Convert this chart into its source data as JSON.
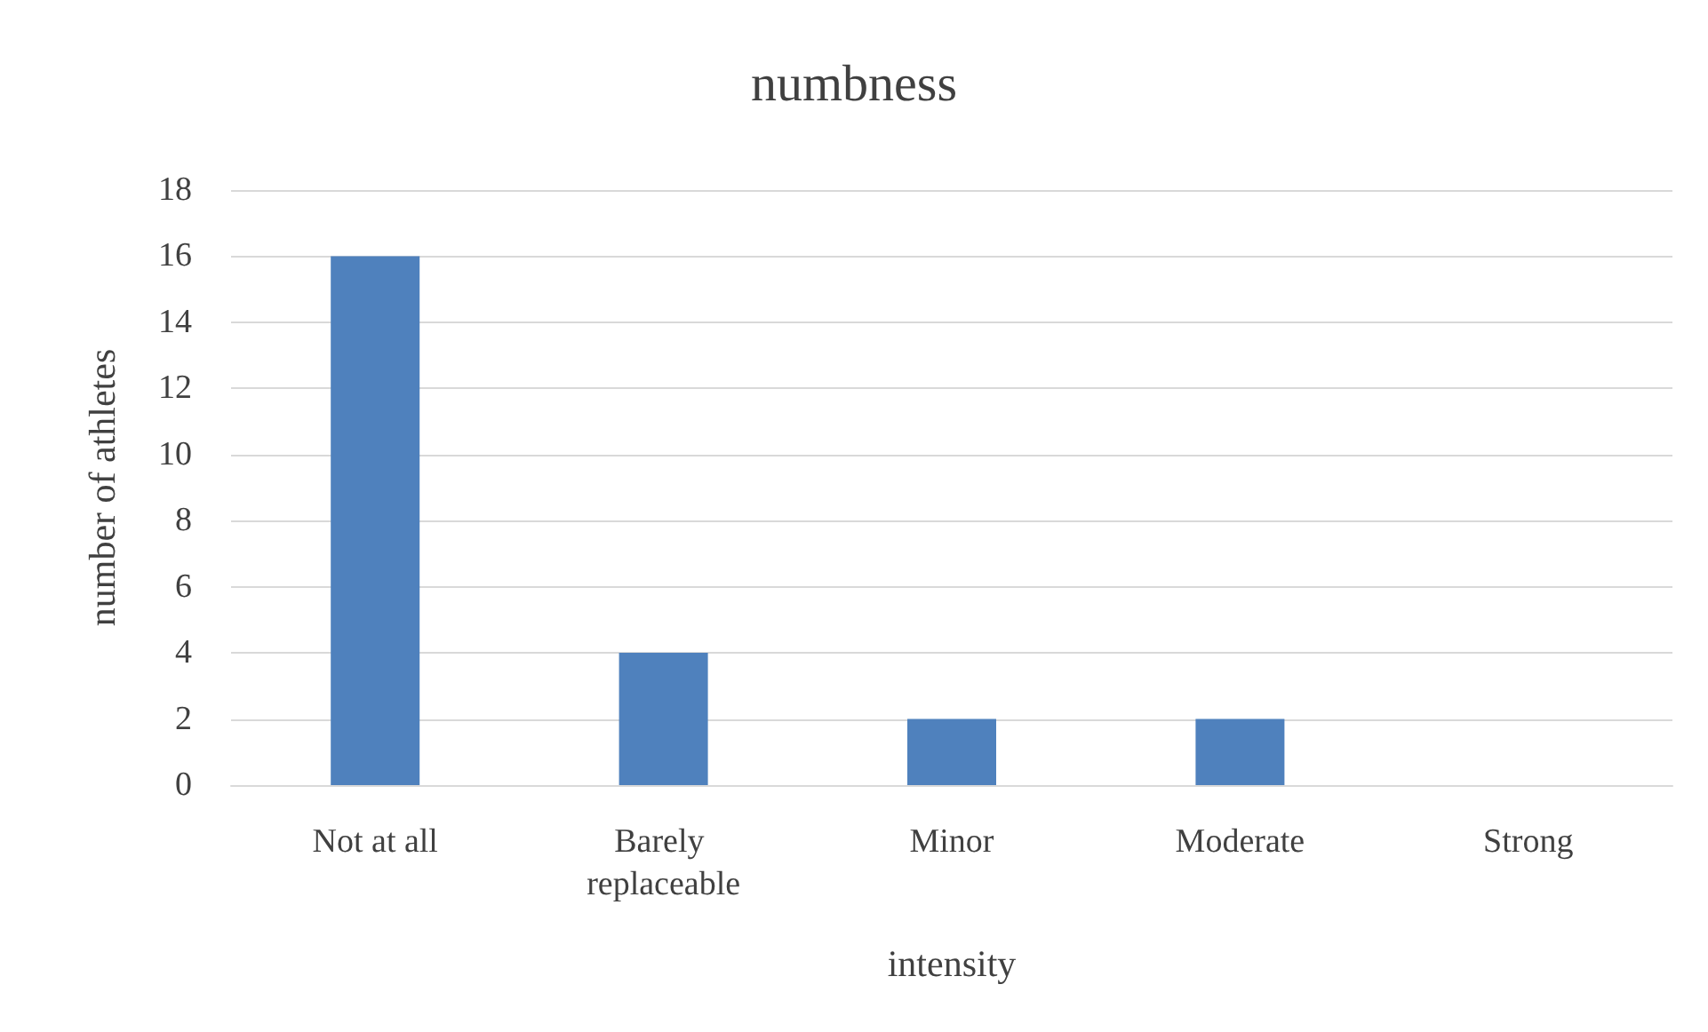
{
  "chart_data": {
    "type": "bar",
    "title": "numbness",
    "xlabel": "intensity",
    "ylabel": "number of athletes",
    "categories": [
      "Not at all",
      "Barely replaceable",
      "Minor",
      "Moderate",
      "Strong"
    ],
    "values": [
      16,
      4,
      2,
      2,
      0
    ],
    "color": "#4f81bd",
    "ylim": [
      0,
      18
    ],
    "yticks": [
      0,
      2,
      4,
      6,
      8,
      10,
      12,
      14,
      16,
      18
    ],
    "grid": "y"
  }
}
